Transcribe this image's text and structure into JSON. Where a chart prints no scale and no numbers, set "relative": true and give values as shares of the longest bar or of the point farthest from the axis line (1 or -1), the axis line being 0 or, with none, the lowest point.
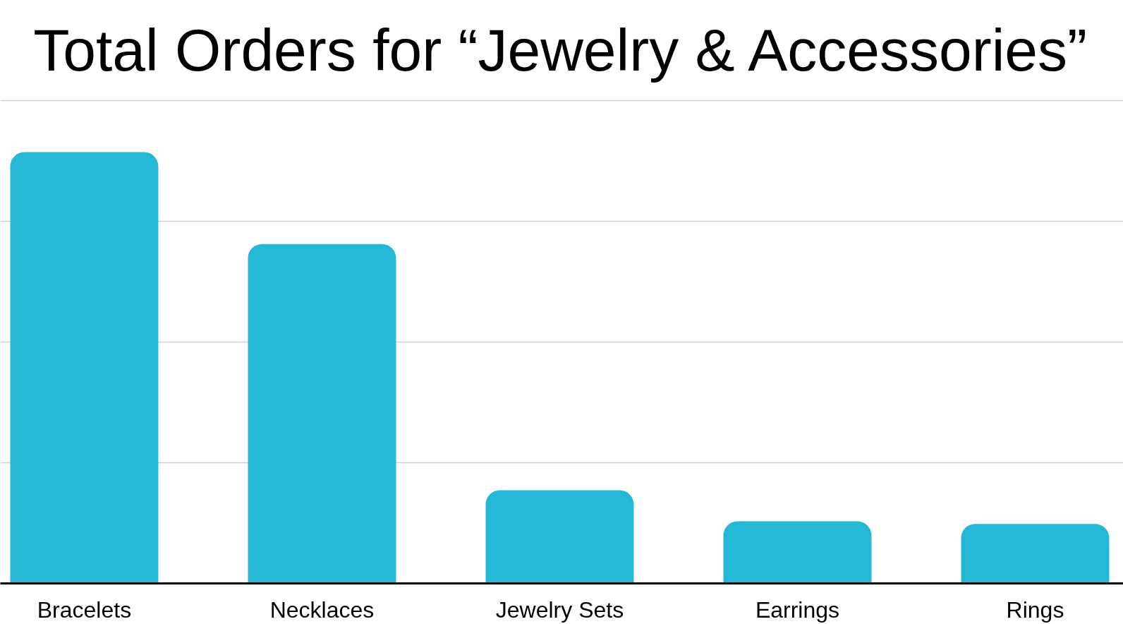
{
  "chart_data": {
    "type": "bar",
    "title": "Total Orders for “Jewelry & Accessories”",
    "categories": [
      "Bracelets",
      "Necklaces",
      "Jewelry Sets",
      "Earrings",
      "Rings"
    ],
    "values": [
      1,
      0.787,
      0.216,
      0.144,
      0.138
    ],
    "color": "#23b8d5",
    "relative": true,
    "grid": "y"
  }
}
